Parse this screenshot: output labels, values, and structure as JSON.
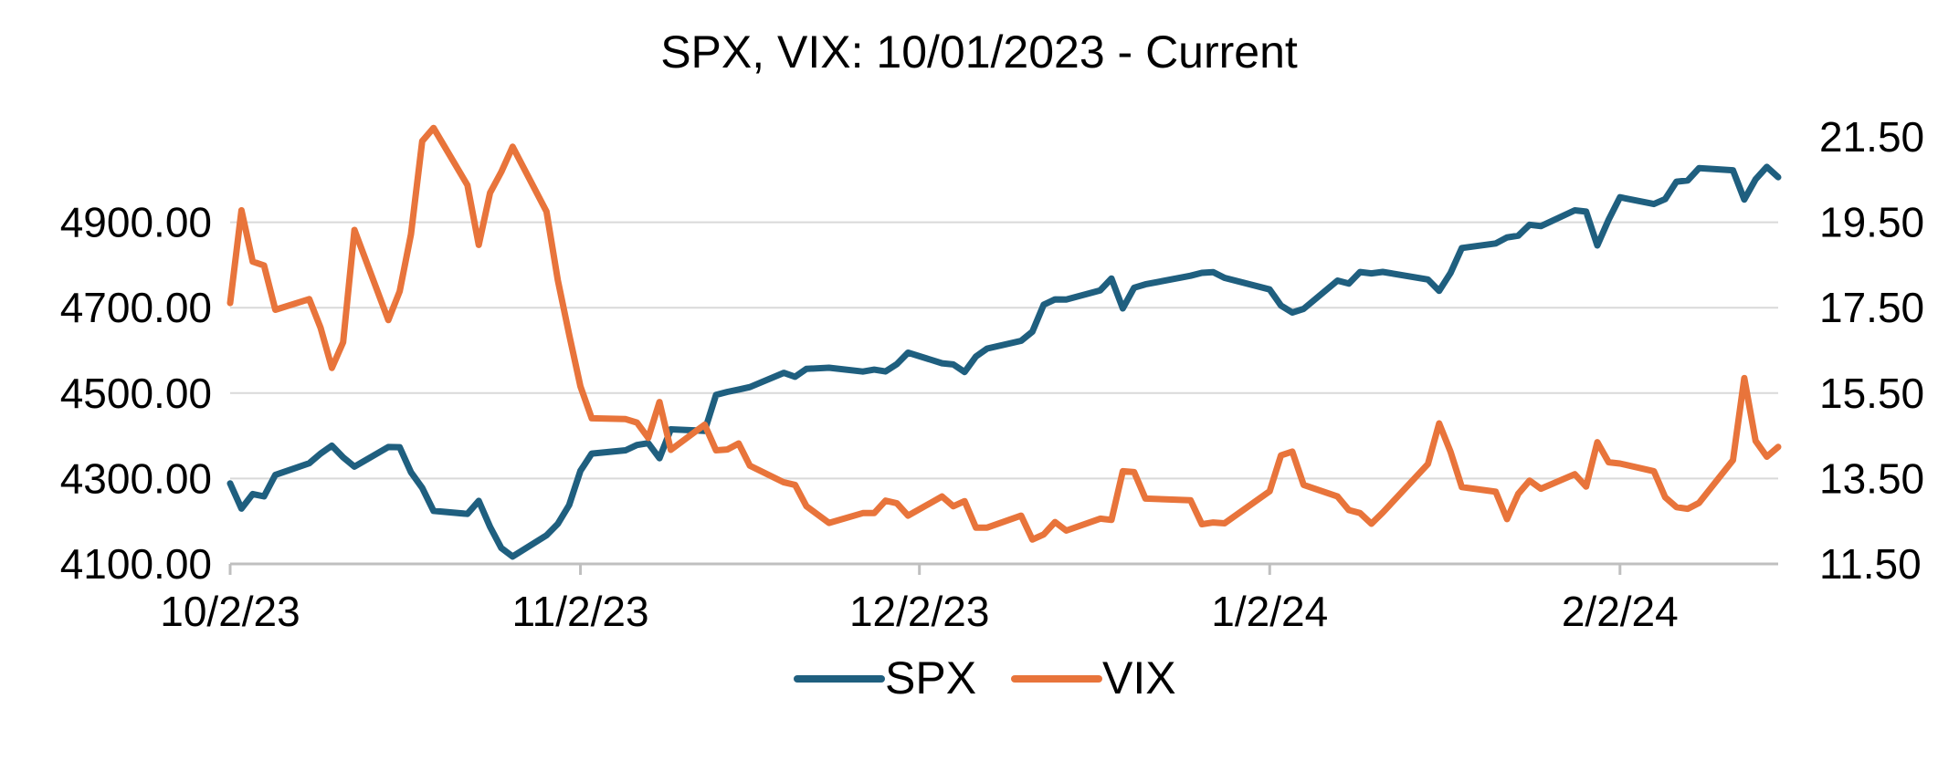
{
  "chart_data": {
    "type": "line",
    "title": "SPX, VIX: 10/01/2023 - Current",
    "x_tick_labels": [
      "10/2/23",
      "11/2/23",
      "12/2/23",
      "1/2/24",
      "2/2/24"
    ],
    "x_ticks": [
      "2023-10-02",
      "2023-11-02",
      "2023-12-02",
      "2024-01-02",
      "2024-02-02"
    ],
    "x_range": [
      "2023-10-02",
      "2024-02-16"
    ],
    "y_left": {
      "ticks": [
        "4100.00",
        "4300.00",
        "4500.00",
        "4700.00",
        "4900.00"
      ],
      "range": [
        4100,
        5100
      ]
    },
    "y_right": {
      "ticks": [
        "11.50",
        "13.50",
        "15.50",
        "17.50",
        "19.50",
        "21.50"
      ],
      "range": [
        11.5,
        21.5
      ]
    },
    "grid": "horizontal",
    "legend_position": "bottom",
    "colors": {
      "SPX": "#1f5f7f",
      "VIX": "#e8743b",
      "grid": "#d9d9d9",
      "axis": "#bfbfbf"
    },
    "series": [
      {
        "name": "SPX",
        "axis": "left",
        "points": [
          [
            "2023-10-02",
            4288.39
          ],
          [
            "2023-10-03",
            4229.45
          ],
          [
            "2023-10-04",
            4263.75
          ],
          [
            "2023-10-05",
            4258.19
          ],
          [
            "2023-10-06",
            4308.5
          ],
          [
            "2023-10-09",
            4335.66
          ],
          [
            "2023-10-10",
            4358.24
          ],
          [
            "2023-10-11",
            4376.95
          ],
          [
            "2023-10-12",
            4349.61
          ],
          [
            "2023-10-13",
            4327.78
          ],
          [
            "2023-10-16",
            4373.63
          ],
          [
            "2023-10-17",
            4373.2
          ],
          [
            "2023-10-18",
            4314.6
          ],
          [
            "2023-10-19",
            4278.0
          ],
          [
            "2023-10-20",
            4224.16
          ],
          [
            "2023-10-23",
            4217.04
          ],
          [
            "2023-10-24",
            4247.68
          ],
          [
            "2023-10-25",
            4186.77
          ],
          [
            "2023-10-26",
            4137.23
          ],
          [
            "2023-10-27",
            4117.37
          ],
          [
            "2023-10-30",
            4166.82
          ],
          [
            "2023-10-31",
            4193.8
          ],
          [
            "2023-11-01",
            4237.86
          ],
          [
            "2023-11-02",
            4317.78
          ],
          [
            "2023-11-03",
            4358.34
          ],
          [
            "2023-11-06",
            4365.98
          ],
          [
            "2023-11-07",
            4378.38
          ],
          [
            "2023-11-08",
            4382.78
          ],
          [
            "2023-11-09",
            4347.35
          ],
          [
            "2023-11-10",
            4415.24
          ],
          [
            "2023-11-13",
            4411.55
          ],
          [
            "2023-11-14",
            4495.7
          ],
          [
            "2023-11-15",
            4502.88
          ],
          [
            "2023-11-16",
            4508.24
          ],
          [
            "2023-11-17",
            4514.02
          ],
          [
            "2023-11-20",
            4547.38
          ],
          [
            "2023-11-21",
            4538.19
          ],
          [
            "2023-11-22",
            4556.62
          ],
          [
            "2023-11-24",
            4559.34
          ],
          [
            "2023-11-27",
            4550.43
          ],
          [
            "2023-11-28",
            4554.89
          ],
          [
            "2023-11-29",
            4550.58
          ],
          [
            "2023-11-30",
            4567.8
          ],
          [
            "2023-12-01",
            4594.63
          ],
          [
            "2023-12-04",
            4569.78
          ],
          [
            "2023-12-05",
            4567.18
          ],
          [
            "2023-12-06",
            4549.34
          ],
          [
            "2023-12-07",
            4585.59
          ],
          [
            "2023-12-08",
            4604.37
          ],
          [
            "2023-12-11",
            4622.44
          ],
          [
            "2023-12-12",
            4643.7
          ],
          [
            "2023-12-13",
            4707.09
          ],
          [
            "2023-12-14",
            4719.55
          ],
          [
            "2023-12-15",
            4719.19
          ],
          [
            "2023-12-18",
            4740.56
          ],
          [
            "2023-12-19",
            4768.37
          ],
          [
            "2023-12-20",
            4698.35
          ],
          [
            "2023-12-21",
            4746.75
          ],
          [
            "2023-12-22",
            4754.63
          ],
          [
            "2023-12-26",
            4774.75
          ],
          [
            "2023-12-27",
            4781.58
          ],
          [
            "2023-12-28",
            4783.35
          ],
          [
            "2023-12-29",
            4769.83
          ],
          [
            "2024-01-02",
            4742.83
          ],
          [
            "2024-01-03",
            4704.81
          ],
          [
            "2024-01-04",
            4688.68
          ],
          [
            "2024-01-05",
            4697.24
          ],
          [
            "2024-01-08",
            4763.54
          ],
          [
            "2024-01-09",
            4756.5
          ],
          [
            "2024-01-10",
            4783.45
          ],
          [
            "2024-01-11",
            4780.24
          ],
          [
            "2024-01-12",
            4783.83
          ],
          [
            "2024-01-16",
            4765.98
          ],
          [
            "2024-01-17",
            4739.21
          ],
          [
            "2024-01-18",
            4780.94
          ],
          [
            "2024-01-19",
            4839.81
          ],
          [
            "2024-01-22",
            4850.43
          ],
          [
            "2024-01-23",
            4864.6
          ],
          [
            "2024-01-24",
            4868.55
          ],
          [
            "2024-01-25",
            4894.16
          ],
          [
            "2024-01-26",
            4890.97
          ],
          [
            "2024-01-29",
            4927.93
          ],
          [
            "2024-01-30",
            4924.97
          ],
          [
            "2024-01-31",
            4845.65
          ],
          [
            "2024-02-01",
            4906.19
          ],
          [
            "2024-02-02",
            4958.61
          ],
          [
            "2024-02-05",
            4942.81
          ],
          [
            "2024-02-06",
            4954.23
          ],
          [
            "2024-02-07",
            4995.06
          ],
          [
            "2024-02-08",
            4997.91
          ],
          [
            "2024-02-09",
            5026.61
          ],
          [
            "2024-02-12",
            5021.84
          ],
          [
            "2024-02-13",
            4953.17
          ],
          [
            "2024-02-14",
            5000.62
          ],
          [
            "2024-02-15",
            5029.73
          ],
          [
            "2024-02-16",
            5005.57
          ]
        ]
      },
      {
        "name": "VIX",
        "axis": "right",
        "points": [
          [
            "2023-10-02",
            17.61
          ],
          [
            "2023-10-03",
            19.78
          ],
          [
            "2023-10-04",
            18.58
          ],
          [
            "2023-10-05",
            18.49
          ],
          [
            "2023-10-06",
            17.45
          ],
          [
            "2023-10-09",
            17.7
          ],
          [
            "2023-10-10",
            17.03
          ],
          [
            "2023-10-11",
            16.09
          ],
          [
            "2023-10-12",
            16.69
          ],
          [
            "2023-10-13",
            19.32
          ],
          [
            "2023-10-16",
            17.21
          ],
          [
            "2023-10-17",
            17.88
          ],
          [
            "2023-10-18",
            19.22
          ],
          [
            "2023-10-19",
            21.4
          ],
          [
            "2023-10-20",
            21.71
          ],
          [
            "2023-10-23",
            20.37
          ],
          [
            "2023-10-24",
            18.97
          ],
          [
            "2023-10-25",
            20.19
          ],
          [
            "2023-10-26",
            20.68
          ],
          [
            "2023-10-27",
            21.27
          ],
          [
            "2023-10-30",
            19.75
          ],
          [
            "2023-10-31",
            18.14
          ],
          [
            "2023-11-01",
            16.87
          ],
          [
            "2023-11-02",
            15.66
          ],
          [
            "2023-11-03",
            14.91
          ],
          [
            "2023-11-06",
            14.89
          ],
          [
            "2023-11-07",
            14.81
          ],
          [
            "2023-11-08",
            14.45
          ],
          [
            "2023-11-09",
            15.29
          ],
          [
            "2023-11-10",
            14.17
          ],
          [
            "2023-11-13",
            14.76
          ],
          [
            "2023-11-14",
            14.16
          ],
          [
            "2023-11-15",
            14.18
          ],
          [
            "2023-11-16",
            14.32
          ],
          [
            "2023-11-17",
            13.8
          ],
          [
            "2023-11-20",
            13.41
          ],
          [
            "2023-11-21",
            13.35
          ],
          [
            "2023-11-22",
            12.85
          ],
          [
            "2023-11-24",
            12.46
          ],
          [
            "2023-11-27",
            12.69
          ],
          [
            "2023-11-28",
            12.69
          ],
          [
            "2023-11-29",
            12.98
          ],
          [
            "2023-11-30",
            12.92
          ],
          [
            "2023-12-01",
            12.63
          ],
          [
            "2023-12-04",
            13.08
          ],
          [
            "2023-12-05",
            12.85
          ],
          [
            "2023-12-06",
            12.97
          ],
          [
            "2023-12-07",
            12.35
          ],
          [
            "2023-12-08",
            12.35
          ],
          [
            "2023-12-11",
            12.63
          ],
          [
            "2023-12-12",
            12.07
          ],
          [
            "2023-12-13",
            12.19
          ],
          [
            "2023-12-14",
            12.48
          ],
          [
            "2023-12-15",
            12.28
          ],
          [
            "2023-12-18",
            12.56
          ],
          [
            "2023-12-19",
            12.53
          ],
          [
            "2023-12-20",
            13.67
          ],
          [
            "2023-12-21",
            13.65
          ],
          [
            "2023-12-22",
            13.03
          ],
          [
            "2023-12-26",
            12.99
          ],
          [
            "2023-12-27",
            12.43
          ],
          [
            "2023-12-28",
            12.47
          ],
          [
            "2023-12-29",
            12.45
          ],
          [
            "2024-01-02",
            13.2
          ],
          [
            "2024-01-03",
            14.04
          ],
          [
            "2024-01-04",
            14.13
          ],
          [
            "2024-01-05",
            13.35
          ],
          [
            "2024-01-08",
            13.08
          ],
          [
            "2024-01-09",
            12.76
          ],
          [
            "2024-01-10",
            12.69
          ],
          [
            "2024-01-11",
            12.44
          ],
          [
            "2024-01-12",
            12.7
          ],
          [
            "2024-01-16",
            13.84
          ],
          [
            "2024-01-17",
            14.79
          ],
          [
            "2024-01-18",
            14.13
          ],
          [
            "2024-01-19",
            13.3
          ],
          [
            "2024-01-22",
            13.19
          ],
          [
            "2024-01-23",
            12.55
          ],
          [
            "2024-01-24",
            13.14
          ],
          [
            "2024-01-25",
            13.45
          ],
          [
            "2024-01-26",
            13.26
          ],
          [
            "2024-01-29",
            13.6
          ],
          [
            "2024-01-30",
            13.31
          ],
          [
            "2024-01-31",
            14.35
          ],
          [
            "2024-02-01",
            13.88
          ],
          [
            "2024-02-02",
            13.85
          ],
          [
            "2024-02-05",
            13.67
          ],
          [
            "2024-02-06",
            13.06
          ],
          [
            "2024-02-07",
            12.83
          ],
          [
            "2024-02-08",
            12.79
          ],
          [
            "2024-02-09",
            12.93
          ],
          [
            "2024-02-12",
            13.93
          ],
          [
            "2024-02-13",
            15.85
          ],
          [
            "2024-02-14",
            14.38
          ],
          [
            "2024-02-15",
            14.01
          ],
          [
            "2024-02-16",
            14.24
          ]
        ]
      }
    ]
  }
}
